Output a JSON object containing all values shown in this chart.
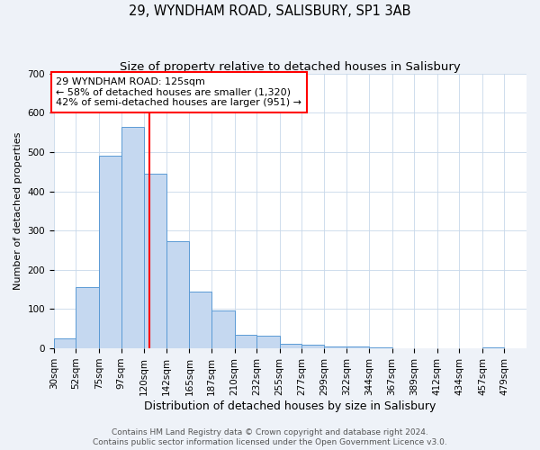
{
  "title": "29, WYNDHAM ROAD, SALISBURY, SP1 3AB",
  "subtitle": "Size of property relative to detached houses in Salisbury",
  "xlabel": "Distribution of detached houses by size in Salisbury",
  "ylabel": "Number of detached properties",
  "bar_left_edges": [
    30,
    52,
    75,
    97,
    120,
    142,
    165,
    187,
    210,
    232,
    255,
    277,
    299,
    322,
    344,
    367,
    389,
    412,
    434,
    457
  ],
  "bar_heights": [
    25,
    155,
    490,
    565,
    445,
    273,
    145,
    97,
    35,
    33,
    12,
    10,
    5,
    5,
    2,
    0,
    0,
    0,
    0,
    3
  ],
  "bar_widths": [
    22,
    23,
    22,
    23,
    22,
    23,
    22,
    23,
    22,
    23,
    22,
    22,
    23,
    22,
    23,
    22,
    23,
    22,
    23,
    22
  ],
  "bar_color": "#c5d8f0",
  "bar_edge_color": "#5b9bd5",
  "vline_x": 125,
  "vline_color": "red",
  "ylim": [
    0,
    700
  ],
  "yticks": [
    0,
    100,
    200,
    300,
    400,
    500,
    600,
    700
  ],
  "xtick_labels": [
    "30sqm",
    "52sqm",
    "75sqm",
    "97sqm",
    "120sqm",
    "142sqm",
    "165sqm",
    "187sqm",
    "210sqm",
    "232sqm",
    "255sqm",
    "277sqm",
    "299sqm",
    "322sqm",
    "344sqm",
    "367sqm",
    "389sqm",
    "412sqm",
    "434sqm",
    "457sqm",
    "479sqm"
  ],
  "annotation_title": "29 WYNDHAM ROAD: 125sqm",
  "annotation_line1": "← 58% of detached houses are smaller (1,320)",
  "annotation_line2": "42% of semi-detached houses are larger (951) →",
  "annotation_box_color": "white",
  "annotation_box_edge": "red",
  "footnote1": "Contains HM Land Registry data © Crown copyright and database right 2024.",
  "footnote2": "Contains public sector information licensed under the Open Government Licence v3.0.",
  "bg_color": "#eef2f8",
  "plot_bg_color": "white",
  "title_fontsize": 10.5,
  "subtitle_fontsize": 9.5,
  "xlabel_fontsize": 9,
  "ylabel_fontsize": 8,
  "tick_fontsize": 7.5,
  "annotation_fontsize": 8,
  "footnote_fontsize": 6.5
}
